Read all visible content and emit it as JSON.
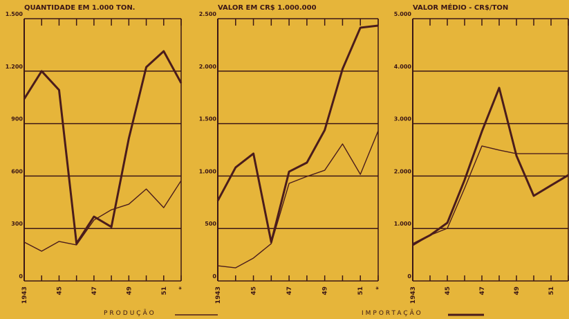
{
  "chart_data": [
    {
      "type": "line",
      "title": "QUANTIDADE EM 1.000 TON.",
      "categories": [
        "1943",
        null,
        "45",
        null,
        "47",
        null,
        "49",
        null,
        "51",
        "*"
      ],
      "ylim": [
        0,
        1500
      ],
      "yticks": [
        0,
        300,
        600,
        900,
        {
          "value": 1200,
          "label": "1.200"
        },
        {
          "value": 1500,
          "label": "1.500"
        }
      ],
      "grid": true,
      "series": [
        {
          "name": "PRODUÇÃO",
          "color": "#4a1c1c",
          "values": [
            222,
            170,
            226,
            206,
            348,
            407,
            439,
            526,
            419,
            574
          ]
        },
        {
          "name": "IMPORTAÇÃO",
          "color": "#4a1c1c",
          "values": [
            1041,
            1200,
            1092,
            214,
            368,
            309,
            815,
            1223,
            1314,
            1132
          ]
        }
      ]
    },
    {
      "type": "line",
      "title": "VALOR EM CR$ 1.000.000",
      "categories": [
        "1943",
        null,
        "45",
        null,
        "47",
        null,
        "49",
        null,
        "51",
        "*"
      ],
      "ylim": [
        0,
        2500
      ],
      "yticks": [
        0,
        500,
        {
          "value": 1000,
          "label": "1.000"
        },
        {
          "value": 1500,
          "label": "1.500"
        },
        {
          "value": 2000,
          "label": "2.000"
        },
        {
          "value": 2500,
          "label": "2.500"
        }
      ],
      "grid": true,
      "series": [
        {
          "color": "#4a1c1c",
          "values": [
            145,
            125,
            218,
            356,
            930,
            996,
            1055,
            1306,
            1016,
            1431
          ]
        },
        {
          "color": "#4a1c1c",
          "values": [
            765,
            1082,
            1214,
            369,
            1042,
            1128,
            1438,
            2020,
            2414,
            2434
          ]
        }
      ]
    },
    {
      "type": "line",
      "title": "VALOR MÉDIO - CR$/TON",
      "categories": [
        "1943",
        null,
        "45",
        null,
        "47",
        null,
        "49",
        null,
        "51",
        null
      ],
      "ylim": [
        0,
        5000
      ],
      "yticks": [
        0,
        {
          "value": 1000,
          "label": "1.000"
        },
        {
          "value": 2000,
          "label": "2.000"
        },
        {
          "value": 3000,
          "label": "3.000"
        },
        {
          "value": 4000,
          "label": "4.000"
        },
        {
          "value": 5000,
          "label": "5.000"
        }
      ],
      "grid": true,
      "series": [
        {
          "color": "#4a1c1c",
          "values": [
            673,
            871,
            1003,
            1768,
            2573,
            2494,
            2427,
            2427,
            2427,
            2427
          ]
        },
        {
          "color": "#4a1c1c",
          "values": [
            699,
            871,
            1108,
            1926,
            2850,
            3681,
            2388,
            1623,
            1821,
            2018
          ]
        }
      ]
    }
  ]
}
